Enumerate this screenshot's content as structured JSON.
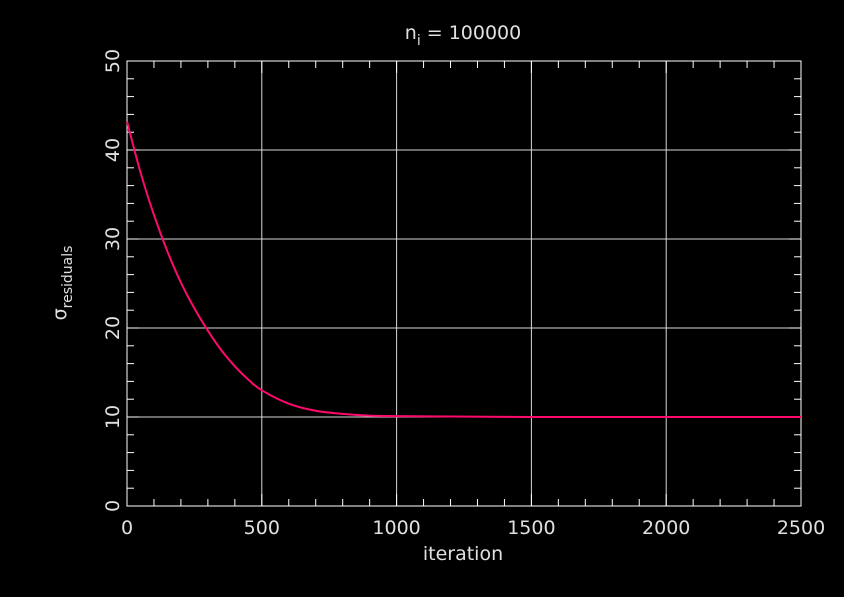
{
  "colors": {
    "background": "#000000",
    "axis": "#ffffff",
    "grid": "#d8d8d8",
    "text": "#e0e0e0",
    "curve": "#ff0a6c"
  },
  "chart_data": {
    "type": "line",
    "title_base": "n",
    "title_sub": "i",
    "title_rest": " = 100000",
    "xlabel": "iteration",
    "ylabel_base": "σ",
    "ylabel_sub": "residuals",
    "xlim": [
      0,
      2500
    ],
    "ylim": [
      0,
      50
    ],
    "xticks": [
      0,
      500,
      1000,
      1500,
      2000,
      2500
    ],
    "yticks": [
      0,
      10,
      20,
      30,
      40,
      50
    ],
    "grid": true,
    "series": [
      {
        "x": [
          0,
          50,
          100,
          150,
          200,
          250,
          300,
          350,
          400,
          450,
          500,
          600,
          700,
          800,
          900,
          1000,
          1200,
          1500,
          2000,
          2500
        ],
        "y": [
          43.2,
          37.5,
          32.7,
          28.6,
          25.1,
          22.2,
          19.7,
          17.5,
          15.7,
          14.2,
          13.0,
          11.5,
          10.7,
          10.35,
          10.15,
          10.1,
          10.05,
          10.0,
          10.0,
          10.0
        ]
      }
    ]
  }
}
